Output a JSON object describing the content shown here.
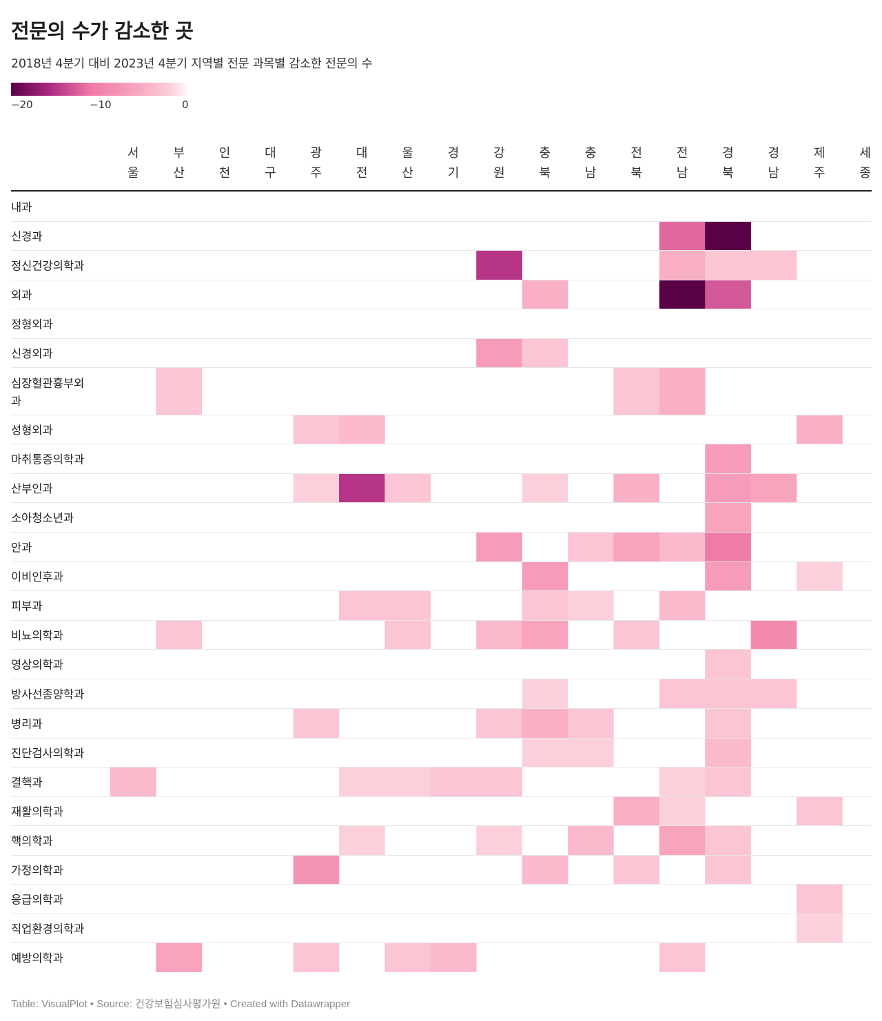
{
  "title": "전문의 수가 감소한 곳",
  "subtitle": "2018년 4분기 대비 2023년 4분기 지역별 전문 과목별 감소한 전문의 수",
  "legend": {
    "min_label": "−20",
    "mid_label": "−10",
    "max_label": "0"
  },
  "footer": "Table: VisualPlot • Source: 건강보험심사평가원 • Created with Datawrapper",
  "colors": {
    "scale": [
      "#5a0047",
      "#ad2a83",
      "#ef7ba7",
      "#f8a4bd",
      "#fcd0da",
      "#ffffff"
    ],
    "rule": "#222222",
    "gridline": "#e6e6e6"
  },
  "chart_data": {
    "type": "heatmap",
    "title": "전문의 수가 감소한 곳",
    "subtitle": "2018년 4분기 대비 2023년 4분기 지역별 전문 과목별 감소한 전문의 수",
    "color_range": [
      -20,
      0
    ],
    "columns": [
      "서울",
      "부산",
      "인천",
      "대구",
      "광주",
      "대전",
      "울산",
      "경기",
      "강원",
      "충북",
      "충남",
      "전북",
      "전남",
      "경북",
      "경남",
      "제주",
      "세종"
    ],
    "rows": [
      "내과",
      "신경과",
      "정신건강의학과",
      "외과",
      "정형외과",
      "신경외과",
      "심장혈관흉부외과",
      "성형외과",
      "마취통증의학과",
      "산부인과",
      "소아청소년과",
      "안과",
      "이비인후과",
      "피부과",
      "비뇨의학과",
      "영상의학과",
      "방사선종양학과",
      "병리과",
      "진단검사의학과",
      "결핵과",
      "재활의학과",
      "핵의학과",
      "가정의학과",
      "응급의학과",
      "직업환경의학과",
      "예방의학과"
    ],
    "values": [
      [
        0,
        0,
        0,
        0,
        0,
        0,
        0,
        0,
        0,
        0,
        0,
        0,
        0,
        0,
        0,
        0,
        0
      ],
      [
        0,
        0,
        0,
        0,
        0,
        0,
        0,
        0,
        0,
        0,
        0,
        0,
        -12,
        -20,
        0,
        0,
        0
      ],
      [
        0,
        0,
        0,
        0,
        0,
        0,
        0,
        0,
        -15,
        0,
        0,
        0,
        -5,
        -3,
        -3,
        0,
        0
      ],
      [
        0,
        0,
        0,
        0,
        0,
        0,
        0,
        0,
        0,
        -5,
        0,
        0,
        -20,
        -13,
        0,
        0,
        0
      ],
      [
        0,
        0,
        0,
        0,
        0,
        0,
        0,
        0,
        0,
        0,
        0,
        0,
        0,
        0,
        0,
        0,
        0
      ],
      [
        0,
        0,
        0,
        0,
        0,
        0,
        0,
        0,
        -7,
        -3,
        0,
        0,
        0,
        0,
        0,
        0,
        0
      ],
      [
        0,
        -3,
        0,
        0,
        0,
        0,
        0,
        0,
        0,
        0,
        0,
        -3,
        -5,
        0,
        0,
        0,
        0
      ],
      [
        0,
        0,
        0,
        0,
        -3,
        -4,
        0,
        0,
        0,
        0,
        0,
        0,
        0,
        0,
        0,
        -5,
        0
      ],
      [
        0,
        0,
        0,
        0,
        0,
        0,
        0,
        0,
        0,
        0,
        0,
        0,
        0,
        -7,
        0,
        0,
        0
      ],
      [
        0,
        0,
        0,
        0,
        -2,
        -15,
        -3,
        0,
        0,
        -2,
        0,
        -5,
        0,
        -7,
        -6,
        0,
        0
      ],
      [
        0,
        0,
        0,
        0,
        0,
        0,
        0,
        0,
        0,
        0,
        0,
        0,
        0,
        -6,
        0,
        0,
        0
      ],
      [
        0,
        0,
        0,
        0,
        0,
        0,
        0,
        0,
        -7,
        0,
        -3,
        -6,
        -4,
        -11,
        0,
        0,
        0
      ],
      [
        0,
        0,
        0,
        0,
        0,
        0,
        0,
        0,
        0,
        -7,
        0,
        0,
        0,
        -7,
        0,
        -2,
        0
      ],
      [
        0,
        0,
        0,
        0,
        0,
        -3,
        -3,
        0,
        0,
        -3,
        -2,
        0,
        -4,
        0,
        0,
        0,
        0
      ],
      [
        0,
        -3,
        0,
        0,
        0,
        0,
        -3,
        0,
        -4,
        -6,
        0,
        -3,
        0,
        0,
        -9,
        0,
        0
      ],
      [
        0,
        0,
        0,
        0,
        0,
        0,
        0,
        0,
        0,
        0,
        0,
        0,
        0,
        -3,
        0,
        0,
        0
      ],
      [
        0,
        0,
        0,
        0,
        0,
        0,
        0,
        0,
        0,
        -2,
        0,
        0,
        -3,
        -3,
        -3,
        0,
        0
      ],
      [
        0,
        0,
        0,
        0,
        -3,
        0,
        0,
        0,
        -3,
        -5,
        -3,
        0,
        0,
        -3,
        0,
        0,
        0
      ],
      [
        0,
        0,
        0,
        0,
        0,
        0,
        0,
        0,
        0,
        -2,
        -2,
        0,
        0,
        -4,
        0,
        0,
        0
      ],
      [
        -4,
        0,
        0,
        0,
        0,
        -2,
        -2,
        -3,
        -3,
        0,
        0,
        0,
        -2,
        -3,
        0,
        0,
        0
      ],
      [
        0,
        0,
        0,
        0,
        0,
        0,
        0,
        0,
        0,
        0,
        0,
        -5,
        -2,
        0,
        0,
        -3,
        0
      ],
      [
        0,
        0,
        0,
        0,
        0,
        -2,
        0,
        0,
        -2,
        0,
        -4,
        0,
        -6,
        -3,
        0,
        0,
        0
      ],
      [
        0,
        0,
        0,
        0,
        -8,
        0,
        0,
        0,
        0,
        -4,
        0,
        -3,
        0,
        -3,
        0,
        0,
        0
      ],
      [
        0,
        0,
        0,
        0,
        0,
        0,
        0,
        0,
        0,
        0,
        0,
        0,
        0,
        0,
        0,
        -3,
        0
      ],
      [
        0,
        0,
        0,
        0,
        0,
        0,
        0,
        0,
        0,
        0,
        0,
        0,
        0,
        0,
        0,
        -2,
        0
      ],
      [
        0,
        -6,
        0,
        0,
        -3,
        0,
        -3,
        -4,
        0,
        0,
        0,
        0,
        -3,
        0,
        0,
        0,
        0
      ]
    ]
  }
}
